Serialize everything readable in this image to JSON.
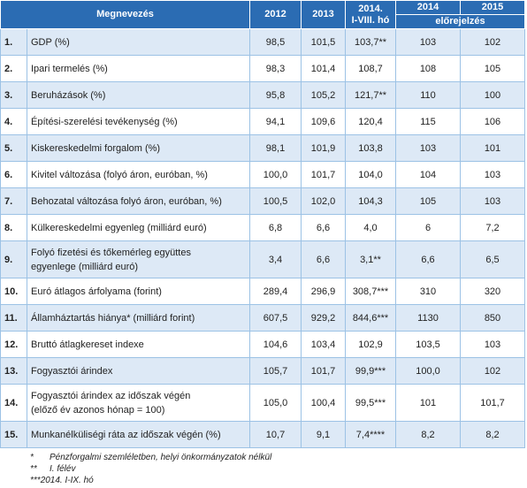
{
  "header": {
    "name": "Megnevezés",
    "y2012": "2012",
    "y2013": "2013",
    "y2014ytd": [
      "2014.",
      "I-VIII. hó"
    ],
    "y2014": "2014",
    "y2015": "2015",
    "forecast": "előrejelzés"
  },
  "table": {
    "rows": [
      [
        "1.",
        [
          "GDP (%)"
        ],
        "98,5",
        "101,5",
        "103,7**",
        "103",
        "102"
      ],
      [
        "2.",
        [
          "Ipari termelés (%)"
        ],
        "98,3",
        "101,4",
        "108,7",
        "108",
        "105"
      ],
      [
        "3.",
        [
          "Beruházások (%)"
        ],
        "95,8",
        "105,2",
        "121,7**",
        "110",
        "100"
      ],
      [
        "4.",
        [
          "Építési-szerelési tevékenység (%)"
        ],
        "94,1",
        "109,6",
        "120,4",
        "115",
        "106"
      ],
      [
        "5.",
        [
          "Kiskereskedelmi forgalom (%)"
        ],
        "98,1",
        "101,9",
        "103,8",
        "103",
        "101"
      ],
      [
        "6.",
        [
          "Kivitel változása (folyó áron, euróban, %)"
        ],
        "100,0",
        "101,7",
        "104,0",
        "104",
        "103"
      ],
      [
        "7.",
        [
          "Behozatal változása folyó áron, euróban, %)"
        ],
        "100,5",
        "102,0",
        "104,3",
        "105",
        "103"
      ],
      [
        "8.",
        [
          "Külkereskedelmi egyenleg (milliárd euró)"
        ],
        "6,8",
        "6,6",
        "4,0",
        "6",
        "7,2"
      ],
      [
        "9.",
        [
          "Folyó fizetési és tőkemérleg együttes",
          "egyenlege (milliárd euró)"
        ],
        "3,4",
        "6,6",
        "3,1**",
        "6,6",
        "6,5"
      ],
      [
        "10.",
        [
          "Euró átlagos árfolyama (forint)"
        ],
        "289,4",
        "296,9",
        "308,7***",
        "310",
        "320"
      ],
      [
        "11.",
        [
          "Államháztartás hiánya* (milliárd forint)"
        ],
        "607,5",
        "929,2",
        "844,6***",
        "1130",
        "850"
      ],
      [
        "12.",
        [
          "Bruttó átlagkereset indexe"
        ],
        "104,6",
        "103,4",
        "102,9",
        "103,5",
        "103"
      ],
      [
        "13.",
        [
          "Fogyasztói árindex"
        ],
        "105,7",
        "101,7",
        "99,9***",
        "100,0",
        "102"
      ],
      [
        "14.",
        [
          "Fogyasztói árindex az időszak végén",
          "(előző év azonos hónap = 100)"
        ],
        "105,0",
        "100,4",
        "99,5***",
        "101",
        "101,7"
      ],
      [
        "15.",
        [
          "Munkanélküliségi ráta az időszak végén (%)"
        ],
        "10,7",
        "9,1",
        "7,4****",
        "8,2",
        "8,2"
      ]
    ]
  },
  "footnotes": [
    [
      "*",
      "Pénzforgalmi szemléletben, helyi önkormányzatok nélkül"
    ],
    [
      "**",
      "I. félév"
    ],
    [
      "***",
      "2014. I-IX. hó"
    ]
  ]
}
